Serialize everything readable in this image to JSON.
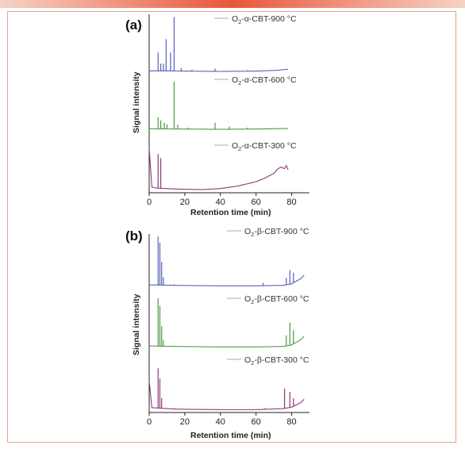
{
  "colors": {
    "accent_bar_start": "#f7d2c4",
    "accent_bar_mid": "#e8573c",
    "frame": "#e9a08e",
    "series_blue": "#5a5fb8",
    "series_green": "#4b9a46",
    "series_purple": "#8c3a78",
    "legend_line": "#aaaaaa"
  },
  "chart_data": [
    {
      "type": "line",
      "panel": "(a)",
      "xlabel": "Retention time (min)",
      "ylabel": "Signal intensity",
      "xlim": [
        0,
        90
      ],
      "x_ticks": [
        0,
        20,
        40,
        60,
        80
      ],
      "grid": false,
      "legend_placement": "right of each trace",
      "series": [
        {
          "name": "O2-α-CBT-900 °C",
          "legend": {
            "pre": "O",
            "sub": "2",
            "post": "-α-CBT-900 °C"
          },
          "color": "#5a5fb8",
          "baseline": [
            [
              0,
              1
            ],
            [
              10,
              1
            ],
            [
              20,
              0.5
            ],
            [
              40,
              0
            ],
            [
              60,
              0.5
            ],
            [
              72,
              2
            ],
            [
              78,
              4
            ]
          ],
          "peaks": [
            [
              5,
              34
            ],
            [
              6.5,
              14
            ],
            [
              8,
              14
            ],
            [
              9.5,
              58
            ],
            [
              12,
              34
            ],
            [
              14,
              98
            ],
            [
              18,
              6
            ],
            [
              24,
              3
            ],
            [
              37,
              5
            ],
            [
              55,
              2
            ]
          ]
        },
        {
          "name": "O2-α-CBT-600 °C",
          "legend": {
            "pre": "O",
            "sub": "2",
            "post": "-α-CBT-600 °C"
          },
          "color": "#4b9a46",
          "baseline": [
            [
              0,
              1
            ],
            [
              20,
              0.5
            ],
            [
              40,
              0
            ],
            [
              60,
              0.5
            ],
            [
              78,
              1.5
            ]
          ],
          "peaks": [
            [
              5,
              22
            ],
            [
              6.5,
              16
            ],
            [
              8.5,
              12
            ],
            [
              10,
              9
            ],
            [
              14,
              86
            ],
            [
              16,
              8
            ],
            [
              22,
              3
            ],
            [
              37,
              12
            ],
            [
              45,
              5
            ],
            [
              55,
              3
            ],
            [
              68,
              2
            ]
          ]
        },
        {
          "name": "O2-α-CBT-300 °C",
          "legend": {
            "pre": "O",
            "sub": "2",
            "post": "-α-CBT-300 °C"
          },
          "color": "#8c3a78",
          "baseline": [
            [
              0,
              80
            ],
            [
              1.5,
              5
            ],
            [
              4,
              3
            ],
            [
              15,
              1
            ],
            [
              30,
              0
            ],
            [
              40,
              2
            ],
            [
              50,
              7
            ],
            [
              60,
              15
            ],
            [
              65,
              22
            ],
            [
              70,
              31
            ],
            [
              72,
              39
            ],
            [
              74,
              43
            ],
            [
              76,
              40
            ],
            [
              77,
              46
            ],
            [
              78,
              38
            ]
          ],
          "peaks": [
            [
              5,
              68
            ],
            [
              6.5,
              60
            ]
          ]
        }
      ]
    },
    {
      "type": "line",
      "panel": "(b)",
      "xlabel": "Retention time (min)",
      "ylabel": "Signal intensity",
      "xlim": [
        0,
        90
      ],
      "x_ticks": [
        0,
        20,
        40,
        60,
        80
      ],
      "grid": false,
      "legend_placement": "right of each trace",
      "series": [
        {
          "name": "O2-β-CBT-900 °C",
          "legend": {
            "pre": "O",
            "sub": "2",
            "post": "-β-CBT-900 °C"
          },
          "color": "#5a5fb8",
          "baseline": [
            [
              0,
              3
            ],
            [
              15,
              2
            ],
            [
              40,
              1
            ],
            [
              60,
              1
            ],
            [
              75,
              2
            ],
            [
              80,
              5
            ],
            [
              85,
              15
            ],
            [
              87,
              22
            ]
          ],
          "peaks": [
            [
              5,
              98
            ],
            [
              6,
              86
            ],
            [
              7,
              48
            ],
            [
              8,
              18
            ],
            [
              14,
              4
            ],
            [
              64,
              7
            ],
            [
              77,
              17
            ],
            [
              79,
              32
            ],
            [
              81,
              27
            ],
            [
              83,
              12
            ]
          ]
        },
        {
          "name": "O2-β-CBT-600 °C",
          "legend": {
            "pre": "O",
            "sub": "2",
            "post": "-β-CBT-600 °C"
          },
          "color": "#4b9a46",
          "baseline": [
            [
              0,
              3
            ],
            [
              15,
              2
            ],
            [
              40,
              1
            ],
            [
              60,
              1
            ],
            [
              75,
              2
            ],
            [
              80,
              5
            ],
            [
              85,
              15
            ],
            [
              87,
              22
            ]
          ],
          "peaks": [
            [
              5,
              97
            ],
            [
              6,
              82
            ],
            [
              7,
              42
            ],
            [
              8,
              14
            ],
            [
              14,
              3
            ],
            [
              77,
              24
            ],
            [
              79,
              49
            ],
            [
              81,
              34
            ],
            [
              83,
              11
            ]
          ]
        },
        {
          "name": "O2-β-CBT-300 °C",
          "legend": {
            "pre": "O",
            "sub": "2",
            "post": "-β-CBT-300 °C"
          },
          "color": "#8c3a78",
          "baseline": [
            [
              0,
              60
            ],
            [
              1.5,
              5
            ],
            [
              15,
              2
            ],
            [
              40,
              1
            ],
            [
              60,
              1
            ],
            [
              75,
              3
            ],
            [
              80,
              6
            ],
            [
              85,
              15
            ],
            [
              87,
              22
            ]
          ],
          "peaks": [
            [
              5,
              85
            ],
            [
              6,
              64
            ],
            [
              7,
              24
            ],
            [
              14,
              4
            ],
            [
              65,
              4
            ],
            [
              76,
              44
            ],
            [
              79,
              37
            ],
            [
              81,
              24
            ]
          ]
        }
      ]
    }
  ]
}
